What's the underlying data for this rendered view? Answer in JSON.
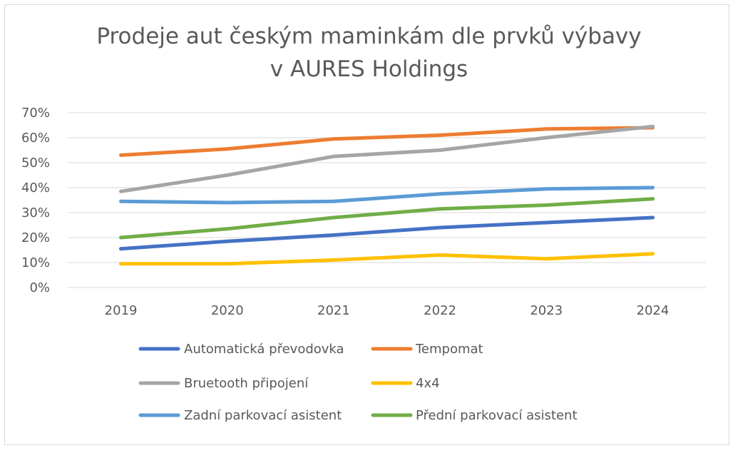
{
  "chart_data": {
    "type": "line",
    "title_line1": "Prodeje aut českým maminkám dle prvků výbavy",
    "title_line2": "v AURES Holdings",
    "xlabel": "",
    "ylabel": "",
    "categories": [
      "2019",
      "2020",
      "2021",
      "2022",
      "2023",
      "2024"
    ],
    "ylim": [
      0,
      70
    ],
    "yticks": [
      0,
      10,
      20,
      30,
      40,
      50,
      60,
      70
    ],
    "ytick_labels": [
      "0%",
      "10%",
      "20%",
      "30%",
      "40%",
      "50%",
      "60%",
      "70%"
    ],
    "grid": true,
    "legend_position": "bottom",
    "series": [
      {
        "name": "Automatická převodovka",
        "color": "#4472c4",
        "values": [
          15.5,
          18.5,
          21,
          24,
          26,
          28
        ]
      },
      {
        "name": "Tempomat",
        "color": "#ed7d31",
        "values": [
          53,
          55.5,
          59.5,
          61,
          63.5,
          64
        ]
      },
      {
        "name": "Bruetooth připojení",
        "color": "#a5a5a5",
        "values": [
          38.5,
          45,
          52.5,
          55,
          60,
          64.5
        ]
      },
      {
        "name": "4x4",
        "color": "#ffc000",
        "values": [
          9.5,
          9.5,
          11,
          13,
          11.5,
          13.5
        ]
      },
      {
        "name": "Zadní parkovací asistent",
        "color": "#5b9bd5",
        "values": [
          34.5,
          34,
          34.5,
          37.5,
          39.5,
          40
        ]
      },
      {
        "name": "Přední parkovací asistent",
        "color": "#70ad47",
        "values": [
          20,
          23.5,
          28,
          31.5,
          33,
          35.5
        ]
      }
    ]
  }
}
